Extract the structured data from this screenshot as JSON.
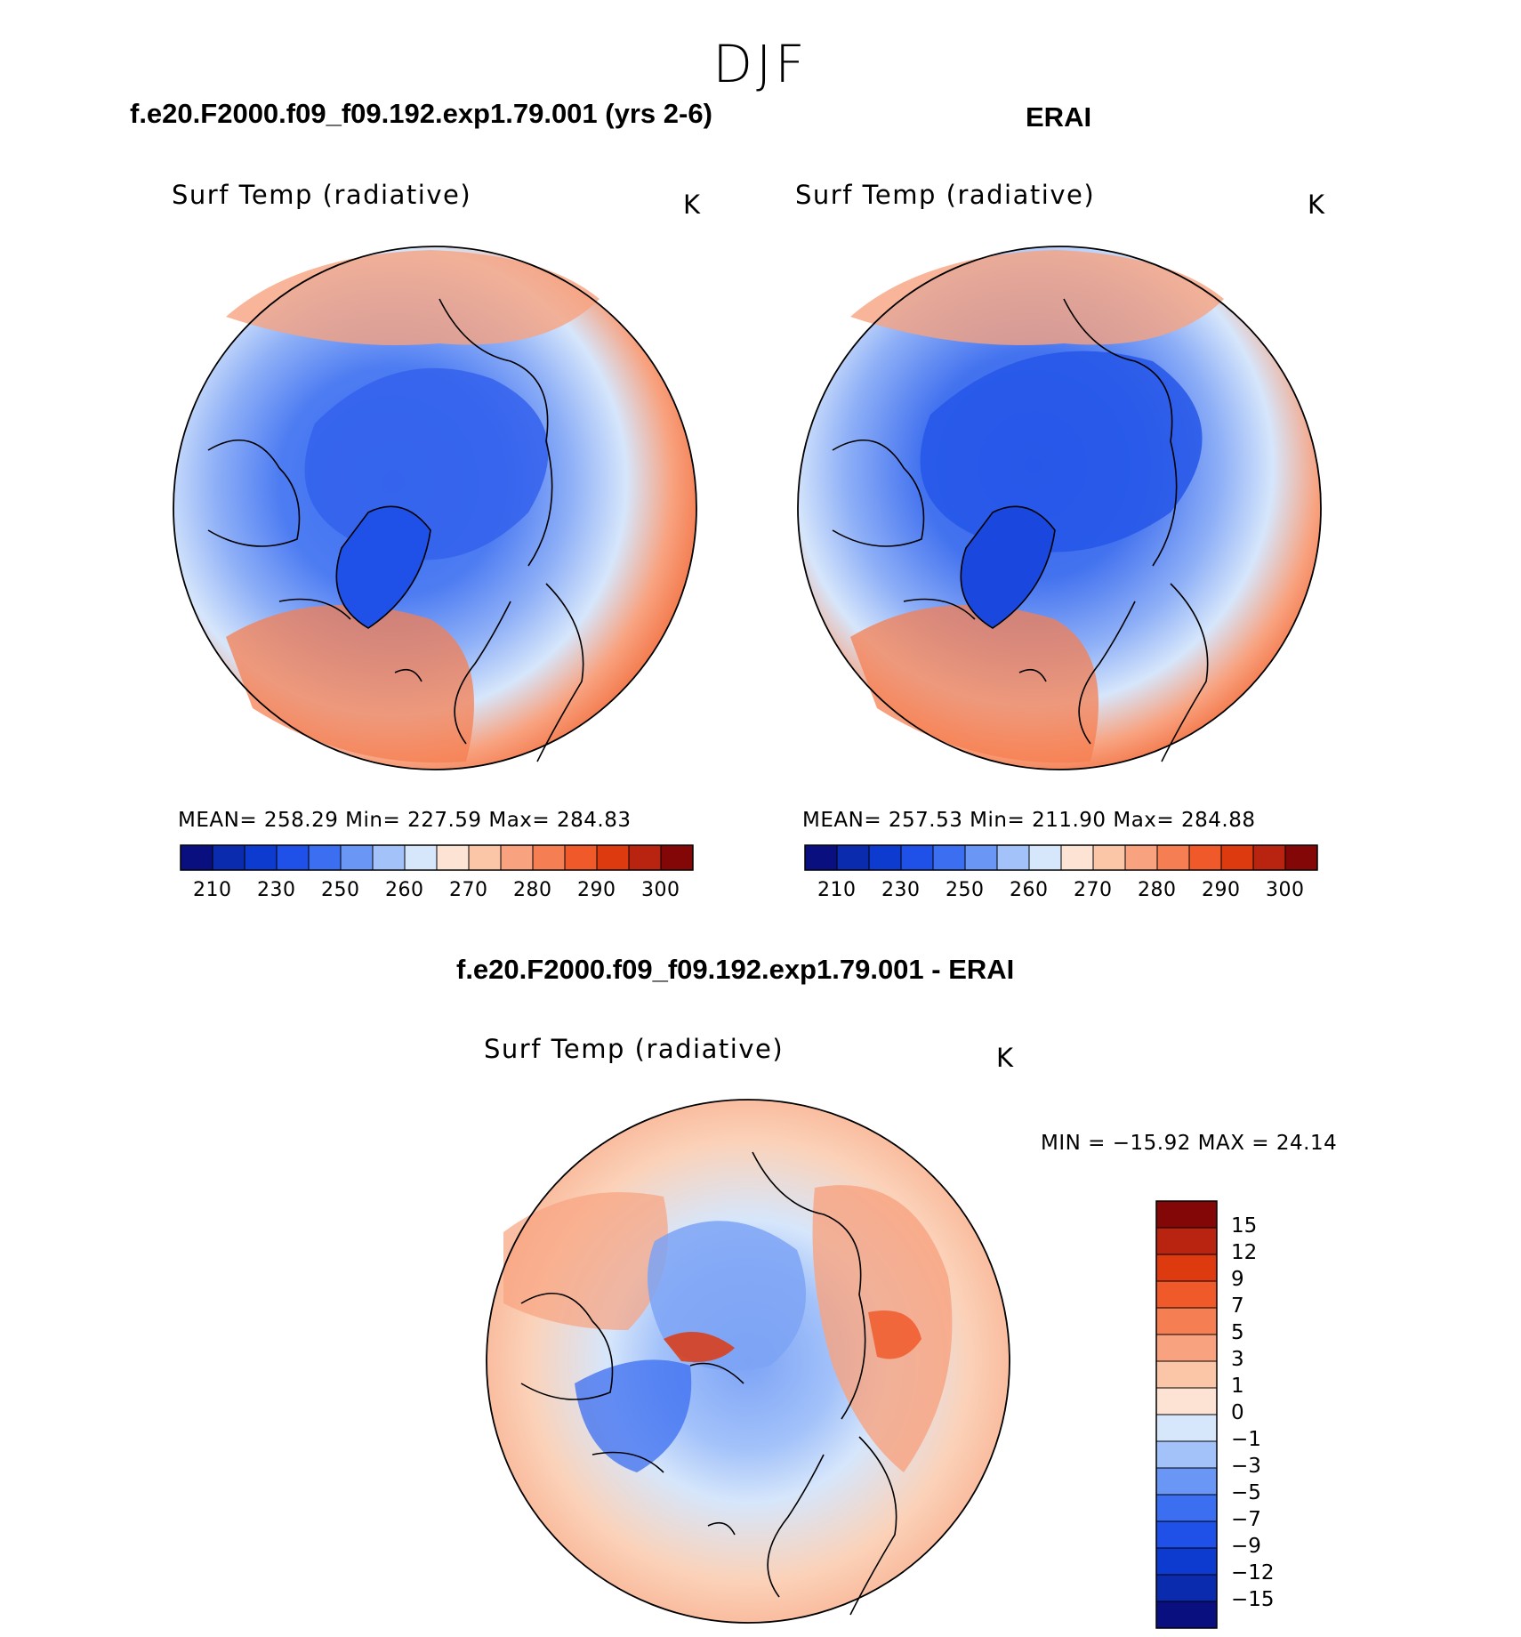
{
  "season": "DJF",
  "panels": [
    {
      "header": "f.e20.F2000.f09_f09.192.exp1.79.001 (yrs 2-6)",
      "variable": "Surf Temp (radiative)",
      "units": "K",
      "stats": "MEAN=  258.29    Min=  227.59    Max=  284.83"
    },
    {
      "header": "ERAI",
      "variable": "Surf Temp (radiative)",
      "units": "K",
      "stats": "MEAN=  257.53    Min=  211.90    Max=  284.88"
    }
  ],
  "difference": {
    "header": "f.e20.F2000.f09_f09.192.exp1.79.001 - ERAI",
    "variable": "Surf Temp (radiative)",
    "units": "K",
    "minmax": "MIN  =  −15.92  MAX  =    24.14"
  },
  "chart_data": [
    {
      "type": "heatmap",
      "title": "f.e20.F2000.f09_f09.192.exp1.79.001 (yrs 2-6)",
      "projection": "north polar stereographic",
      "variable": "Surf Temp (radiative)",
      "units": "K",
      "mean": 258.29,
      "min": 227.59,
      "max": 284.83,
      "colorbar_levels": [
        210,
        220,
        230,
        240,
        250,
        255,
        260,
        265,
        270,
        275,
        280,
        285,
        290,
        295,
        300
      ],
      "colorbar_tick_labels": [
        "210",
        "230",
        "250",
        "260",
        "270",
        "280",
        "290",
        "300"
      ],
      "colors": [
        "#0a0f80",
        "#0a2bae",
        "#0d3bd0",
        "#1f51e8",
        "#3b6ef0",
        "#6a96f6",
        "#a3c2fa",
        "#d6e6fb",
        "#fce3d3",
        "#fbc5a8",
        "#f8a27f",
        "#f57f52",
        "#f05a2b",
        "#de3a10",
        "#b82410",
        "#840707"
      ]
    },
    {
      "type": "heatmap",
      "title": "ERAI",
      "projection": "north polar stereographic",
      "variable": "Surf Temp (radiative)",
      "units": "K",
      "mean": 257.53,
      "min": 211.9,
      "max": 284.88,
      "colorbar_levels": [
        210,
        220,
        230,
        240,
        250,
        255,
        260,
        265,
        270,
        275,
        280,
        285,
        290,
        295,
        300
      ],
      "colorbar_tick_labels": [
        "210",
        "230",
        "250",
        "260",
        "270",
        "280",
        "290",
        "300"
      ],
      "colors": [
        "#0a0f80",
        "#0a2bae",
        "#0d3bd0",
        "#1f51e8",
        "#3b6ef0",
        "#6a96f6",
        "#a3c2fa",
        "#d6e6fb",
        "#fce3d3",
        "#fbc5a8",
        "#f8a27f",
        "#f57f52",
        "#f05a2b",
        "#de3a10",
        "#b82410",
        "#840707"
      ]
    },
    {
      "type": "heatmap",
      "title": "f.e20.F2000.f09_f09.192.exp1.79.001 - ERAI",
      "projection": "north polar stereographic",
      "variable": "Surf Temp (radiative)",
      "units": "K",
      "min": -15.92,
      "max": 24.14,
      "colorbar_levels": [
        15,
        12,
        9,
        7,
        5,
        3,
        1,
        0,
        -1,
        -3,
        -5,
        -7,
        -9,
        -12,
        -15
      ],
      "colorbar_tick_labels": [
        "15",
        "12",
        "9",
        "7",
        "5",
        "3",
        "1",
        "0",
        "−1",
        "−3",
        "−5",
        "−7",
        "−9",
        "−12",
        "−15"
      ],
      "colors": [
        "#840707",
        "#b82410",
        "#de3a10",
        "#f05a2b",
        "#f57f52",
        "#f8a27f",
        "#fbc5a8",
        "#fce3d3",
        "#d6e6fb",
        "#a3c2fa",
        "#6a96f6",
        "#3b6ef0",
        "#1f51e8",
        "#0d3bd0",
        "#0a2bae",
        "#0a0f80"
      ]
    }
  ]
}
